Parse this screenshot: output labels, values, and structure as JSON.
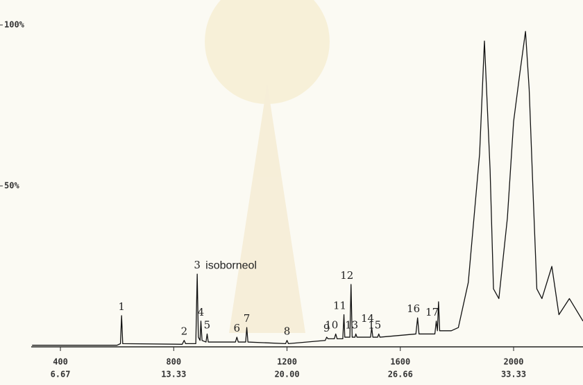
{
  "chart_data": {
    "type": "line",
    "x": [
      300,
      600,
      612,
      616,
      620,
      830,
      837,
      842,
      878,
      883,
      887,
      893,
      896,
      900,
      914,
      918,
      922,
      1018,
      1023,
      1028,
      1054,
      1058,
      1062,
      1195,
      1200,
      1205,
      1335,
      1340,
      1345,
      1367,
      1372,
      1377,
      1397,
      1401,
      1404,
      1422,
      1426,
      1430,
      1440,
      1443,
      1447,
      1495,
      1499,
      1503,
      1520,
      1524,
      1528,
      1655,
      1661,
      1666,
      1722,
      1727,
      1731,
      1735,
      1739,
      1780,
      1805,
      1840,
      1880,
      1897,
      1917,
      1929,
      1948,
      1978,
      2000,
      2022,
      2042,
      2055,
      2070,
      2082,
      2100,
      2135,
      2160,
      2197,
      2245
    ],
    "series": [
      {
        "color": "#111111",
        "values": [
          0.5,
          0.5,
          1,
          9.7,
          1,
          0.8,
          2,
          1,
          1,
          22.6,
          3,
          2,
          8,
          2,
          1.5,
          4,
          1.5,
          1.5,
          3,
          1.5,
          1.5,
          6,
          1.5,
          1,
          2,
          1,
          2,
          3,
          2.5,
          2.5,
          4,
          2.5,
          2.5,
          10,
          3,
          3,
          19.4,
          3,
          3,
          4,
          3,
          3,
          6,
          3,
          3,
          4,
          3,
          4,
          9,
          4,
          4,
          8,
          5,
          14,
          5,
          5,
          6,
          20,
          60,
          95,
          55,
          18,
          15,
          40,
          70,
          85,
          98,
          80,
          45,
          18,
          15,
          25,
          10,
          15,
          8
        ]
      }
    ],
    "xlim": [
      297,
      2245
    ],
    "ylim": [
      0,
      100
    ],
    "xticks": [
      400,
      800,
      1200,
      1600,
      2000
    ],
    "x_time_labels": [
      "6.67",
      "13.33",
      "20.00",
      "26.66",
      "33.33"
    ],
    "yticks": [
      {
        "value": 50,
        "label": "50%"
      },
      {
        "value": 100,
        "label": "100%"
      }
    ],
    "peaks": [
      {
        "label": "1",
        "x": 616
      },
      {
        "label": "2",
        "x": 837
      },
      {
        "label": "3",
        "x": 883,
        "name": "isoborneol"
      },
      {
        "label": "4",
        "x": 896
      },
      {
        "label": "5",
        "x": 918
      },
      {
        "label": "6",
        "x": 1023
      },
      {
        "label": "7",
        "x": 1058
      },
      {
        "label": "8",
        "x": 1200
      },
      {
        "label": "9",
        "x": 1340
      },
      {
        "label": "10",
        "x": 1372
      },
      {
        "label": "11",
        "x": 1401
      },
      {
        "label": "12",
        "x": 1426
      },
      {
        "label": "13",
        "x": 1443
      },
      {
        "label": "14",
        "x": 1499
      },
      {
        "label": "15",
        "x": 1524
      },
      {
        "label": "16",
        "x": 1661
      },
      {
        "label": "17",
        "x": 1727
      }
    ]
  }
}
